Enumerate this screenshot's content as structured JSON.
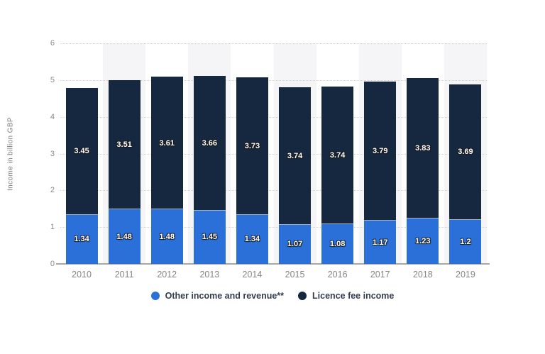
{
  "chart_data": {
    "type": "bar",
    "stacked": true,
    "title": "",
    "xlabel": "",
    "ylabel": "Income in billion GBP",
    "ylim": [
      0,
      6
    ],
    "yticks": [
      0,
      1,
      2,
      3,
      4,
      5,
      6
    ],
    "grid": true,
    "grid_style": "dotted",
    "legend_position": "bottom",
    "plot_bands": "alternating category background stripes on odd categories",
    "categories": [
      "2010",
      "2011",
      "2012",
      "2013",
      "2014",
      "2015",
      "2016",
      "2017",
      "2018",
      "2019"
    ],
    "series": [
      {
        "name": "Other income and revenue**",
        "color": "#2a70d8",
        "values": [
          1.34,
          1.48,
          1.48,
          1.45,
          1.34,
          1.07,
          1.08,
          1.17,
          1.23,
          1.2
        ],
        "labels": [
          "1.34",
          "1.48",
          "1.48",
          "1.45",
          "1.34",
          "1.07",
          "1.08",
          "1.17",
          "1.23",
          "1.2"
        ]
      },
      {
        "name": "Licence fee income",
        "color": "#15283f",
        "values": [
          3.45,
          3.51,
          3.61,
          3.66,
          3.73,
          3.74,
          3.74,
          3.79,
          3.83,
          3.69
        ],
        "labels": [
          "3.45",
          "3.51",
          "3.61",
          "3.66",
          "3.73",
          "3.74",
          "3.74",
          "3.79",
          "3.83",
          "3.69"
        ]
      }
    ]
  },
  "style": {
    "band_color": "#f5f5f7",
    "grid_color": "#d2d2d2",
    "axis_color": "#a8a8a8",
    "tick_text_color": "#8a8a8a",
    "x_tick_text_color": "#868686",
    "ylabel_color": "#7d7d7d",
    "legend_text_color": "#333e4e",
    "value_label_color": "#ffffff"
  }
}
